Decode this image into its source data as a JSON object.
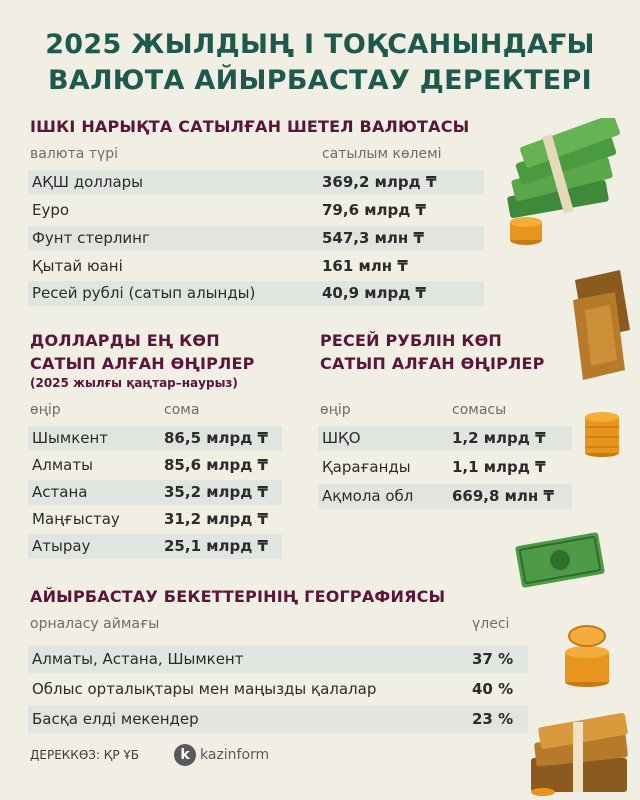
{
  "title": {
    "line1": "2025 ЖЫЛДЫҢ І ТОҚСАНЫНДАҒЫ",
    "line2": "ВАЛЮТА АЙЫРБАСТАУ ДЕРЕКТЕРІ"
  },
  "domestic": {
    "title": "ІШКІ НАРЫҚТА САТЫЛҒАН ШЕТЕЛ ВАЛЮТАСЫ",
    "col1": "валюта түрі",
    "col2": "сатылым көлемі",
    "rows": [
      {
        "name": "АҚШ доллары",
        "value": "369,2 млрд ₸"
      },
      {
        "name": "Еуро",
        "value": "79,6 млрд ₸"
      },
      {
        "name": "Фунт стерлинг",
        "value": "547,3 млн ₸"
      },
      {
        "name": "Қытай юані",
        "value": "161 млн ₸"
      },
      {
        "name": "Ресей рублі (сатып алынды)",
        "value": "40,9 млрд ₸"
      }
    ]
  },
  "dollar_regions": {
    "title1": "ДОЛЛАРДЫ ЕҢ КӨП",
    "title2": "САТЫП АЛҒАН ӨҢІРЛЕР",
    "subtitle": "(2025 жылғы қаңтар–наурыз)",
    "col1": "өңір",
    "col2": "сома",
    "rows": [
      {
        "name": "Шымкент",
        "value": "86,5 млрд ₸"
      },
      {
        "name": "Алматы",
        "value": "85,6 млрд ₸"
      },
      {
        "name": "Астана",
        "value": "35,2 млрд ₸"
      },
      {
        "name": "Маңғыстау",
        "value": "31,2 млрд ₸"
      },
      {
        "name": "Атырау",
        "value": "25,1 млрд ₸"
      }
    ]
  },
  "ruble_regions": {
    "title1": "РЕСЕЙ РУБЛІН КӨП",
    "title2": "САТЫП АЛҒАН ӨҢІРЛЕР",
    "col1": "өңір",
    "col2": "сомасы",
    "rows": [
      {
        "name": "ШҚО",
        "value": "1,2 млрд ₸"
      },
      {
        "name": "Қарағанды",
        "value": "1,1 млрд ₸"
      },
      {
        "name": "Ақмола обл",
        "value": "669,8 млн ₸"
      }
    ]
  },
  "geography": {
    "title": "АЙЫРБАСТАУ БЕКЕТТЕРІНІҢ ГЕОГРАФИЯСЫ",
    "col1": "орналасу аймағы",
    "col2": "үлесі",
    "rows": [
      {
        "name": "Алматы, Астана, Шымкент",
        "value": "37 %"
      },
      {
        "name": "Облыс орталықтары мен маңызды қалалар",
        "value": "40 %"
      },
      {
        "name": "Басқа елді мекендер",
        "value": "23 %"
      }
    ]
  },
  "footer": {
    "source": "ДЕРЕККӨЗ: ҚР ҰБ",
    "logo_letter": "k",
    "logo_text": "kazinform"
  },
  "colors": {
    "background": "#f1eee4",
    "title": "#1d5a4b",
    "section_title": "#5a1538",
    "row_bar": "#e0e6df"
  }
}
